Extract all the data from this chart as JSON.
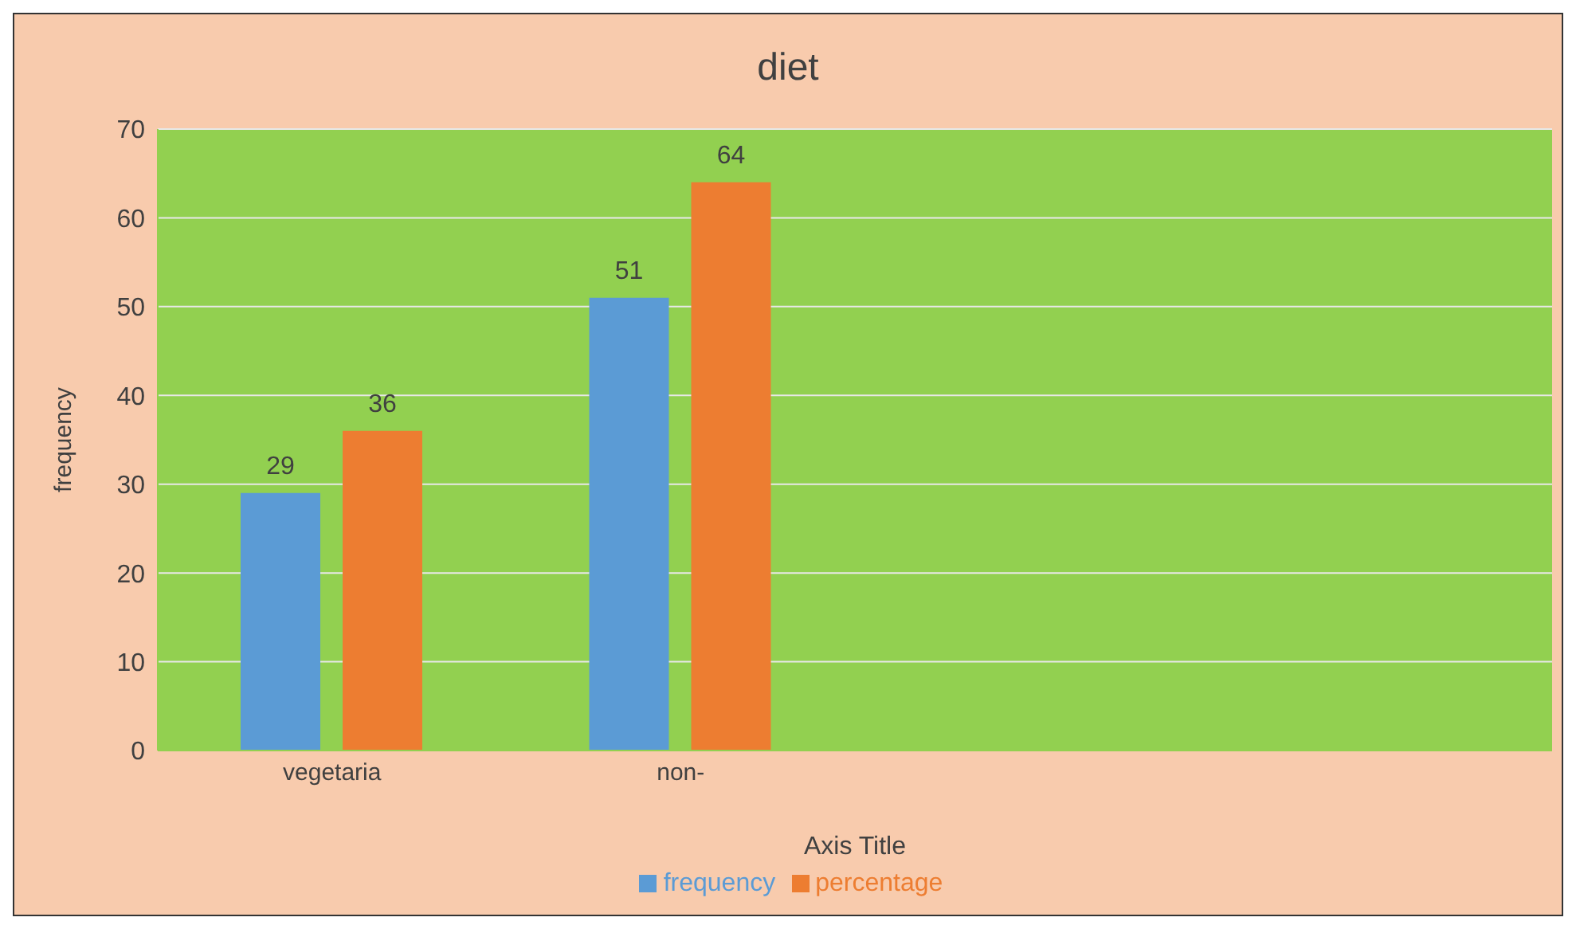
{
  "chart_data": {
    "type": "bar",
    "title": "diet",
    "xlabel": "Axis Title",
    "ylabel": "frequency",
    "categories": [
      "vegetaria",
      "non-",
      null,
      null
    ],
    "series": [
      {
        "name": "frequency",
        "color": "#5b9bd5",
        "values": [
          29,
          51,
          null,
          null
        ]
      },
      {
        "name": "percentage",
        "color": "#ed7d31",
        "values": [
          36,
          64,
          null,
          null
        ]
      }
    ],
    "ylim": [
      0,
      70
    ],
    "yticks": [
      0,
      10,
      20,
      30,
      40,
      50,
      60,
      70
    ],
    "grid": "y",
    "legend": "bottom",
    "data_labels": true
  }
}
